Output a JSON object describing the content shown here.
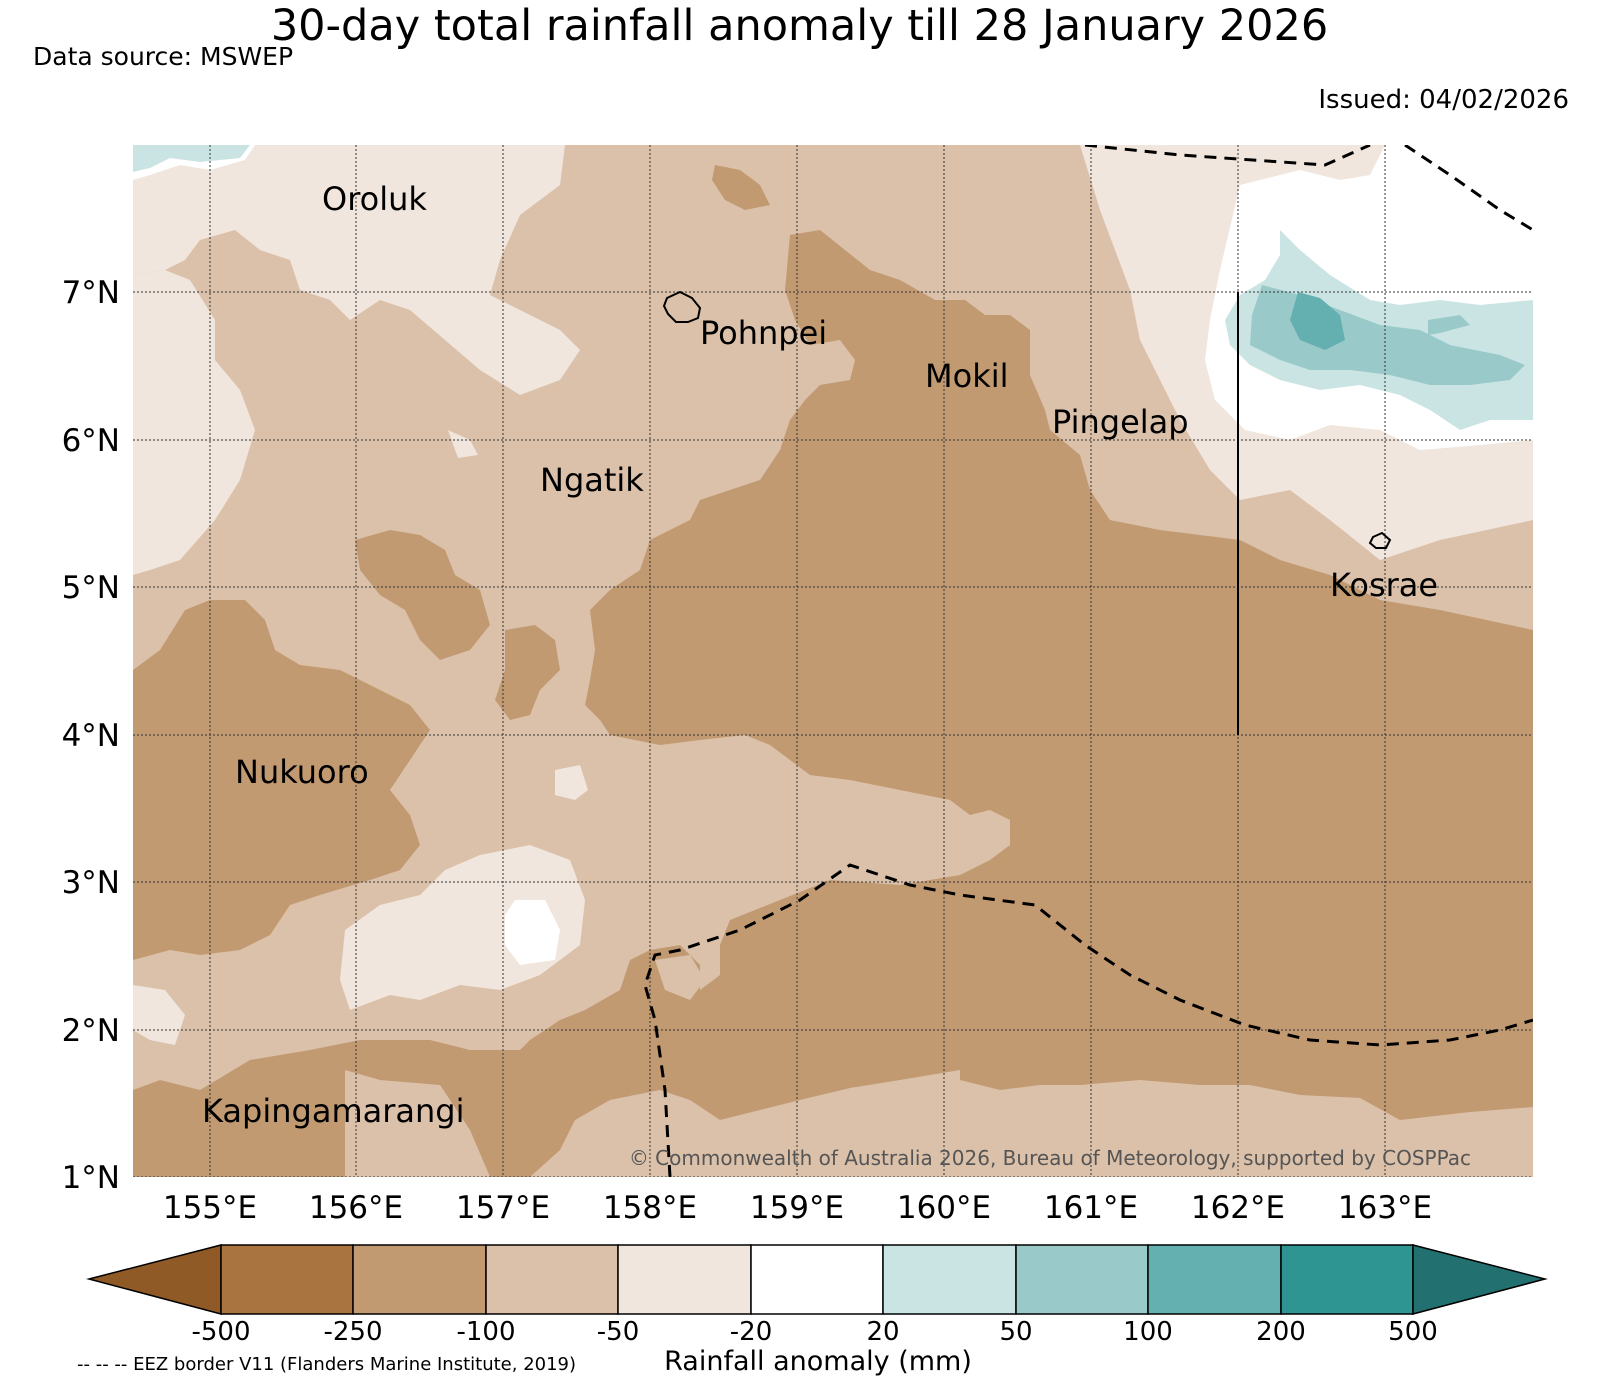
{
  "header": {
    "title": "30-day total rainfall anomaly till 28 January 2026",
    "data_source": "Data source: MSWEP",
    "issued": "Issued: 04/02/2026"
  },
  "map": {
    "lat_labels": [
      "7°N",
      "6°N",
      "5°N",
      "4°N",
      "3°N",
      "2°N",
      "1°N"
    ],
    "lon_labels": [
      "155°E",
      "156°E",
      "157°E",
      "158°E",
      "159°E",
      "160°E",
      "161°E",
      "162°E",
      "163°E"
    ],
    "places": [
      {
        "name": "Oroluk"
      },
      {
        "name": "Pohnpei"
      },
      {
        "name": "Mokil"
      },
      {
        "name": "Pingelap"
      },
      {
        "name": "Ngatik"
      },
      {
        "name": "Kosrae"
      },
      {
        "name": "Nukuoro"
      },
      {
        "name": "Kapingamarangi"
      }
    ],
    "copyright": "© Commonwealth of Australia 2026, Bureau of Meteorology, supported by COSPPac",
    "eez_legend": "-- -- -- EEZ border V11 (Flanders Marine Institute, 2019)",
    "colors": {
      "c_m500": "#8f5a26",
      "c_m250": "#a97440",
      "c_m100": "#c29a72",
      "c_m50": "#dbc1aa",
      "c_m20": "#f0e6dd",
      "c_0": "#ffffff",
      "c_20": "#cae4e3",
      "c_50": "#99cac9",
      "c_100": "#64b0b0",
      "c_200": "#2e9593",
      "c_500": "#22706f"
    }
  },
  "colorbar": {
    "title": "Rainfall anomaly (mm)",
    "ticks": [
      "-500",
      "-250",
      "-100",
      "-50",
      "-20",
      "20",
      "50",
      "100",
      "200",
      "500"
    ]
  }
}
